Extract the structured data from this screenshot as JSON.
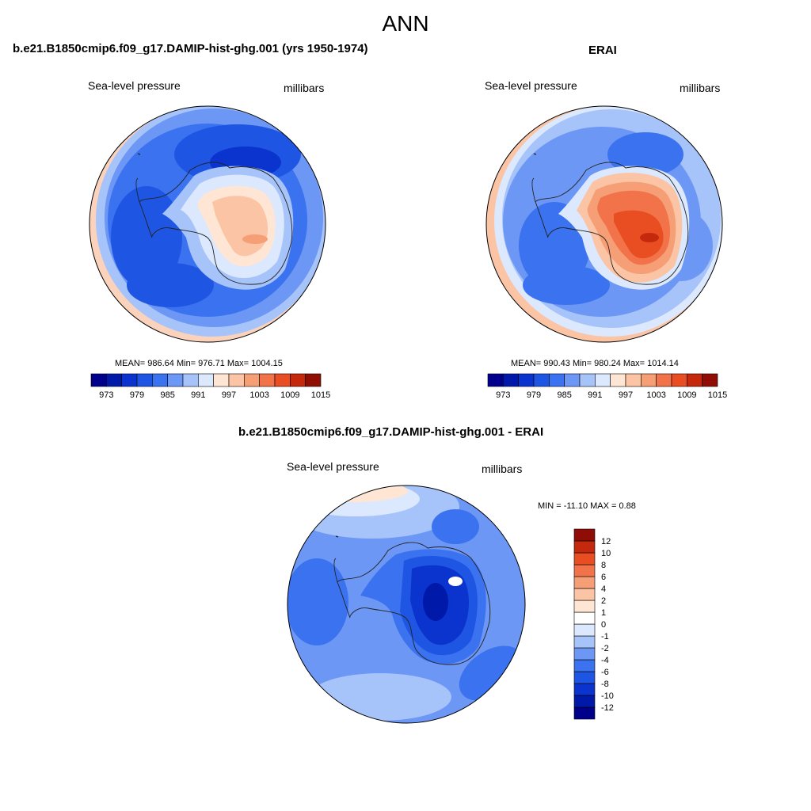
{
  "title": "ANN",
  "panels": [
    {
      "title": "b.e21.B1850cmip6.f09_g17.DAMIP-hist-ghg.001 (yrs 1950-1974)",
      "field_label": "Sea-level pressure",
      "units": "millibars",
      "stats": "MEAN= 986.64  Min= 976.71  Max= 1004.15"
    },
    {
      "title": "ERAI",
      "field_label": "Sea-level pressure",
      "units": "millibars",
      "stats": "MEAN= 990.43  Min= 980.24  Max= 1014.14"
    },
    {
      "title": "b.e21.B1850cmip6.f09_g17.DAMIP-hist-ghg.001 - ERAI",
      "field_label": "Sea-level pressure",
      "units": "millibars",
      "stats": "MIN = -11.10 MAX =   0.88"
    }
  ],
  "abs_colorbar": {
    "colors": [
      "#00008a",
      "#0019a8",
      "#0a34cd",
      "#1f55e3",
      "#3b72ef",
      "#6d97f4",
      "#a6c3fa",
      "#dbe8fd",
      "#ffe6d4",
      "#fbc4a4",
      "#f69e76",
      "#f27349",
      "#e94e22",
      "#c4290d",
      "#8f0d05"
    ],
    "tick_labels": [
      "973",
      "979",
      "985",
      "991",
      "997",
      "1003",
      "1009",
      "1015"
    ]
  },
  "diff_colorbar": {
    "colors": [
      "#00008a",
      "#0019a8",
      "#0a34cd",
      "#1f55e3",
      "#3b72ef",
      "#6d97f4",
      "#a6c3fa",
      "#dbe8fd",
      "#ffffff",
      "#ffe6d4",
      "#fbc4a4",
      "#f69e76",
      "#f27349",
      "#e94e22",
      "#c4290d",
      "#8f0d05"
    ],
    "tick_labels": [
      "12",
      "10",
      "8",
      "6",
      "4",
      "2",
      "1",
      "0",
      "-1",
      "-2",
      "-4",
      "-6",
      "-8",
      "-10",
      "-12"
    ]
  }
}
